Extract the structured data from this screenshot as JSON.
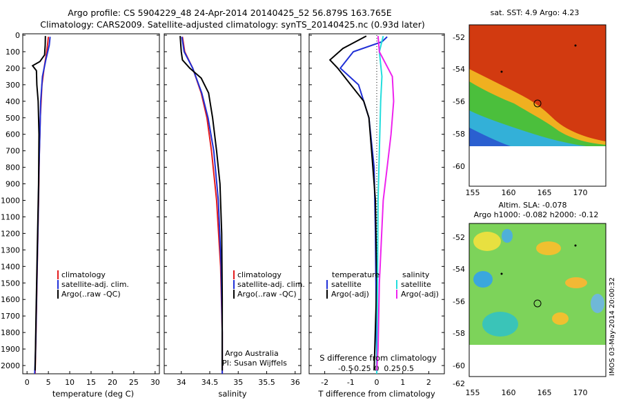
{
  "title_line1": "Argo profile: CS 5904229_48 24-Apr-2014 20140425_52 56.879S 163.765E",
  "title_line2": "Climatology: CARS2009. Satellite-adjusted climatology: synTS_20140425.nc (0.93d later)",
  "colors": {
    "climatology": "#e31a1c",
    "satellite": "#1f2fd6",
    "argo": "#000000",
    "satellite_s": "#22dddd",
    "argo_s": "#ee22ee"
  },
  "depth_ticks": [
    "0",
    "100",
    "200",
    "300",
    "400",
    "500",
    "600",
    "700",
    "800",
    "900",
    "1000",
    "1100",
    "1200",
    "1300",
    "1400",
    "1500",
    "1600",
    "1700",
    "1800",
    "1900",
    "2000"
  ],
  "legend": {
    "climatology": "climatology",
    "satellite_clim": "satellite-adj. clim.",
    "argo_raw": "Argo(..raw -QC)"
  },
  "legend_diff": {
    "t_header": "temperature",
    "s_header": "salinity",
    "satellite": "satellite",
    "argo_adj": "Argo(-adj)"
  },
  "credit": {
    "line1": "Argo Australia",
    "line2": "PI: Susan Wijffels"
  },
  "map1": {
    "title": "sat. SST: 4.9 Argo: 4.23"
  },
  "map2": {
    "title1": "Altim. SLA: -0.078",
    "title2": "Argo h1000: -0.082 h2000: -0.12"
  },
  "map_axes": {
    "lat_ticks": [
      "-52",
      "-54",
      "-56",
      "-58",
      "-60",
      "-62"
    ],
    "lon_ticks": [
      "155",
      "160",
      "165",
      "170"
    ]
  },
  "timestamp": "IMOS 03-May-2014 20:00:32",
  "chart_data": [
    {
      "type": "line",
      "xlabel": "temperature (deg C)",
      "ylabel": "",
      "xlim": [
        -1,
        31
      ],
      "ylim": [
        2050,
        0
      ],
      "xticks": [
        "0",
        "5",
        "10",
        "15",
        "20",
        "25",
        "30"
      ],
      "series": [
        {
          "name": "climatology",
          "color": "#e31a1c",
          "points": [
            [
              5.0,
              10
            ],
            [
              4.8,
              60
            ],
            [
              4.5,
              120
            ],
            [
              4.0,
              200
            ],
            [
              3.5,
              300
            ],
            [
              3.1,
              500
            ],
            [
              2.9,
              700
            ],
            [
              2.7,
              1000
            ],
            [
              2.4,
              1400
            ],
            [
              2.1,
              1800
            ],
            [
              1.9,
              2050
            ]
          ]
        },
        {
          "name": "satellite-adj. clim.",
          "color": "#1f2fd6",
          "points": [
            [
              5.4,
              10
            ],
            [
              5.2,
              60
            ],
            [
              4.4,
              150
            ],
            [
              3.6,
              250
            ],
            [
              3.2,
              400
            ],
            [
              3.0,
              600
            ],
            [
              2.8,
              800
            ],
            [
              2.6,
              1100
            ],
            [
              2.3,
              1500
            ],
            [
              2.0,
              1900
            ],
            [
              1.8,
              2050
            ]
          ]
        },
        {
          "name": "Argo(..raw -QC)",
          "color": "#000000",
          "points": [
            [
              4.3,
              5
            ],
            [
              4.25,
              60
            ],
            [
              4.1,
              120
            ],
            [
              3.0,
              160
            ],
            [
              1.3,
              185
            ],
            [
              2.2,
              215
            ],
            [
              2.3,
              300
            ],
            [
              2.6,
              400
            ],
            [
              2.8,
              600
            ],
            [
              2.7,
              900
            ],
            [
              2.4,
              1300
            ],
            [
              2.1,
              1700
            ],
            [
              1.9,
              2030
            ]
          ]
        }
      ]
    },
    {
      "type": "line",
      "xlabel": "salinity",
      "ylabel": "",
      "xlim": [
        33.7,
        36.1
      ],
      "ylim": [
        2050,
        0
      ],
      "xticks": [
        "34",
        "34.5",
        "35",
        "35.5",
        "36"
      ],
      "series": [
        {
          "name": "climatology",
          "color": "#e31a1c",
          "points": [
            [
              34.02,
              10
            ],
            [
              34.06,
              100
            ],
            [
              34.2,
              200
            ],
            [
              34.35,
              350
            ],
            [
              34.45,
              500
            ],
            [
              34.53,
              700
            ],
            [
              34.62,
              1000
            ],
            [
              34.69,
              1400
            ],
            [
              34.72,
              1800
            ],
            [
              34.72,
              2050
            ]
          ]
        },
        {
          "name": "satellite-adj. clim.",
          "color": "#1f2fd6",
          "points": [
            [
              34.01,
              10
            ],
            [
              34.05,
              100
            ],
            [
              34.2,
              200
            ],
            [
              34.36,
              350
            ],
            [
              34.47,
              500
            ],
            [
              34.57,
              700
            ],
            [
              34.65,
              1000
            ],
            [
              34.7,
              1400
            ],
            [
              34.72,
              1800
            ],
            [
              34.72,
              2050
            ]
          ]
        },
        {
          "name": "Argo(..raw -QC)",
          "color": "#000000",
          "points": [
            [
              33.98,
              5
            ],
            [
              34.0,
              100
            ],
            [
              34.02,
              150
            ],
            [
              34.15,
              200
            ],
            [
              34.35,
              260
            ],
            [
              34.48,
              350
            ],
            [
              34.55,
              500
            ],
            [
              34.62,
              700
            ],
            [
              34.68,
              900
            ],
            [
              34.71,
              1200
            ],
            [
              34.72,
              1600
            ],
            [
              34.72,
              2030
            ]
          ]
        }
      ]
    },
    {
      "type": "line",
      "xlabel": "T difference from climatology",
      "ylabel": "",
      "title_bottom": "S difference from climatology",
      "xlim": [
        -2.6,
        2.6
      ],
      "ylim": [
        2050,
        0
      ],
      "xticks": [
        "-2",
        "-1",
        "0",
        "1",
        "2"
      ],
      "x2ticks": [
        "-0.5",
        "-0.25",
        "0",
        "0.25",
        "0.5"
      ],
      "series": [
        {
          "name": "T satellite",
          "color": "#1f2fd6",
          "points": [
            [
              0.4,
              10
            ],
            [
              0.2,
              40
            ],
            [
              -0.9,
              100
            ],
            [
              -1.4,
              200
            ],
            [
              -0.7,
              300
            ],
            [
              -0.3,
              500
            ],
            [
              -0.1,
              800
            ],
            [
              -0.05,
              1200
            ],
            [
              0,
              2000
            ]
          ]
        },
        {
          "name": "T Argo(-adj)",
          "color": "#000000",
          "points": [
            [
              -0.4,
              5
            ],
            [
              -1.3,
              80
            ],
            [
              -1.8,
              150
            ],
            [
              -1.5,
              200
            ],
            [
              -1.0,
              300
            ],
            [
              -0.5,
              400
            ],
            [
              -0.3,
              500
            ],
            [
              -0.2,
              700
            ],
            [
              -0.05,
              1000
            ],
            [
              0,
              1500
            ],
            [
              -0.1,
              2030
            ]
          ]
        },
        {
          "name": "S satellite",
          "color": "#22dddd",
          "points": [
            [
              0.25,
              5
            ],
            [
              0.1,
              100
            ],
            [
              0.2,
              250
            ],
            [
              0.15,
              400
            ],
            [
              0.1,
              700
            ],
            [
              0.05,
              1000
            ],
            [
              0.03,
              1500
            ],
            [
              0,
              2050
            ]
          ]
        },
        {
          "name": "S Argo(-adj)",
          "color": "#ee22ee",
          "points": [
            [
              0.05,
              5
            ],
            [
              0.1,
              100
            ],
            [
              0.6,
              250
            ],
            [
              0.65,
              400
            ],
            [
              0.55,
              600
            ],
            [
              0.4,
              800
            ],
            [
              0.25,
              1000
            ],
            [
              0.1,
              1500
            ],
            [
              0.05,
              1900
            ],
            [
              0.0,
              2030
            ]
          ]
        }
      ]
    }
  ]
}
